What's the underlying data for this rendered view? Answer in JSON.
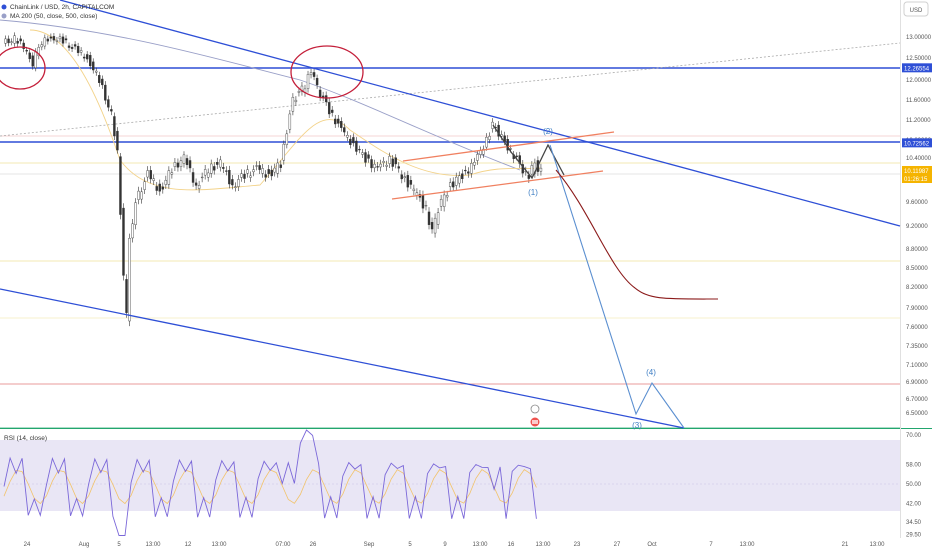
{
  "header": {
    "title": "ChainLink / USD, 2h, CAPITALCOM",
    "indicator": "MA 200 (50, close, 500, close)",
    "currency_button": "USD"
  },
  "rsi": {
    "label": "RSI (14, close)"
  },
  "colors": {
    "price_up": "#26a69a",
    "price_down": "#ef5350",
    "candles": "#333333",
    "trendline": "#2e4fd6",
    "channel": "#f08060",
    "projection_blue": "#5b8fd0",
    "projection_red": "#8b1a1a",
    "rsi_line": "#7b68d9",
    "rsi_band": "#e9e6f5"
  },
  "chart_data": {
    "type": "line",
    "symbol": "ChainLink / USD",
    "timeframe": "2h",
    "x_ticks": [
      "24",
      "Aug",
      "5",
      "13:00",
      "12",
      "13:00",
      "07:00",
      "26",
      "Sep",
      "5",
      "9",
      "13:00",
      "16",
      "13:00",
      "23",
      "27",
      "Oct",
      "7",
      "13:00",
      "21",
      "13:00"
    ],
    "y_ticks": [
      "13.00000",
      "12.50000",
      "12.00000",
      "11.60000",
      "11.20000",
      "10.80000",
      "10.40000",
      "9.60000",
      "9.20000",
      "8.80000",
      "8.50000",
      "8.20000",
      "7.90000",
      "7.60000",
      "7.35000",
      "7.10000",
      "6.90000",
      "6.70000",
      "6.50000"
    ],
    "ylim": [
      6.4,
      13.3
    ],
    "price_labels": [
      {
        "value": "12.26554",
        "color": "#2e4fd6"
      },
      {
        "value": "10.72562",
        "color": "#2e4fd6"
      },
      {
        "value": "10.11987",
        "color": "#f5b400"
      },
      {
        "value": "01:26:15",
        "color": "#f5b400"
      }
    ],
    "horizontal_levels": [
      12.26554,
      10.72562
    ],
    "wave_labels": [
      "(1)",
      "(2)",
      "(3)",
      "(4)"
    ],
    "price_series": [
      {
        "x": 0,
        "y": 12.85
      },
      {
        "x": 2,
        "y": 12.95
      },
      {
        "x": 4,
        "y": 12.7
      },
      {
        "x": 5,
        "y": 12.35
      },
      {
        "x": 6,
        "y": 12.8
      },
      {
        "x": 8,
        "y": 13.0
      },
      {
        "x": 10,
        "y": 12.9
      },
      {
        "x": 12,
        "y": 12.7
      },
      {
        "x": 14,
        "y": 12.5
      },
      {
        "x": 16,
        "y": 12.0
      },
      {
        "x": 18,
        "y": 11.3
      },
      {
        "x": 19,
        "y": 10.5
      },
      {
        "x": 20,
        "y": 8.4
      },
      {
        "x": 20.5,
        "y": 7.75
      },
      {
        "x": 21,
        "y": 9.0
      },
      {
        "x": 22,
        "y": 9.6
      },
      {
        "x": 24,
        "y": 10.1
      },
      {
        "x": 26,
        "y": 9.8
      },
      {
        "x": 28,
        "y": 10.2
      },
      {
        "x": 30,
        "y": 10.4
      },
      {
        "x": 32,
        "y": 9.9
      },
      {
        "x": 34,
        "y": 10.2
      },
      {
        "x": 36,
        "y": 10.3
      },
      {
        "x": 38,
        "y": 9.9
      },
      {
        "x": 40,
        "y": 10.1
      },
      {
        "x": 42,
        "y": 10.2
      },
      {
        "x": 44,
        "y": 10.1
      },
      {
        "x": 46,
        "y": 10.3
      },
      {
        "x": 47,
        "y": 11.0
      },
      {
        "x": 48,
        "y": 11.6
      },
      {
        "x": 50,
        "y": 11.9
      },
      {
        "x": 51,
        "y": 12.25
      },
      {
        "x": 52,
        "y": 11.85
      },
      {
        "x": 54,
        "y": 11.4
      },
      {
        "x": 56,
        "y": 11.0
      },
      {
        "x": 58,
        "y": 10.7
      },
      {
        "x": 60,
        "y": 10.4
      },
      {
        "x": 62,
        "y": 10.2
      },
      {
        "x": 64,
        "y": 10.4
      },
      {
        "x": 66,
        "y": 10.1
      },
      {
        "x": 68,
        "y": 9.8
      },
      {
        "x": 70,
        "y": 9.5
      },
      {
        "x": 71,
        "y": 9.1
      },
      {
        "x": 72,
        "y": 9.5
      },
      {
        "x": 74,
        "y": 9.9
      },
      {
        "x": 76,
        "y": 10.1
      },
      {
        "x": 78,
        "y": 10.3
      },
      {
        "x": 80,
        "y": 10.8
      },
      {
        "x": 81,
        "y": 11.1
      },
      {
        "x": 82,
        "y": 10.95
      },
      {
        "x": 84,
        "y": 10.55
      },
      {
        "x": 86,
        "y": 10.2
      },
      {
        "x": 87,
        "y": 10.1
      },
      {
        "x": 88,
        "y": 10.3
      },
      {
        "x": 89,
        "y": 10.15
      }
    ],
    "rsi_ylim": [
      28,
      72
    ],
    "rsi_ticks": [
      "70.00",
      "58.00",
      "50.00",
      "42.00",
      "34.50",
      "29.50"
    ]
  }
}
